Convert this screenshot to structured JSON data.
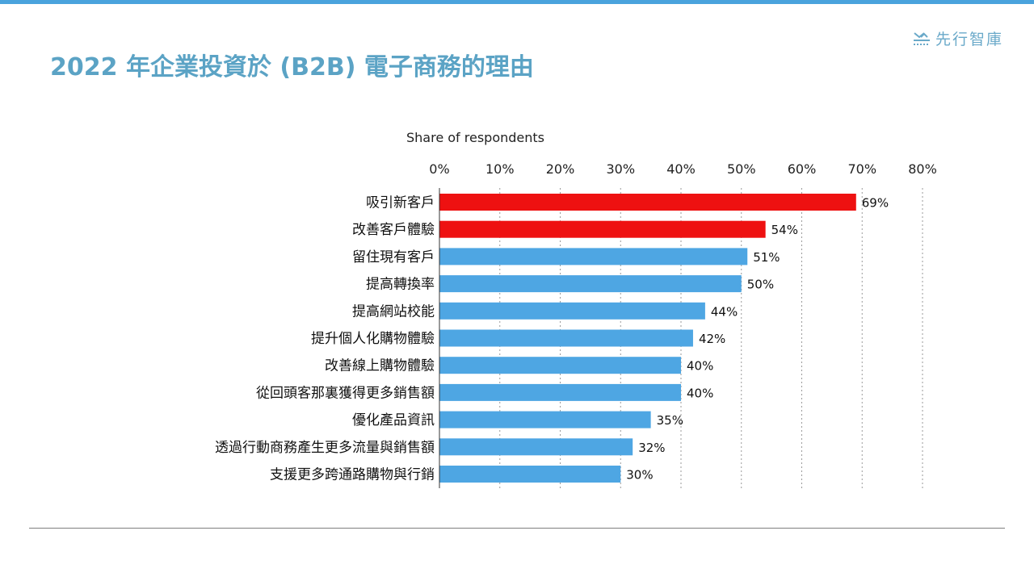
{
  "brand": {
    "logo_text": "先行智庫"
  },
  "page_title": "2022 年企業投資於 (B2B) 電子商務的理由",
  "chart_data": {
    "type": "bar",
    "orientation": "horizontal",
    "title": "2022 年企業投資於 (B2B) 電子商務的理由",
    "xlabel": "Share of respondents",
    "ylabel": "",
    "xlim": [
      0,
      80
    ],
    "ticks": [
      "0%",
      "10%",
      "20%",
      "30%",
      "40%",
      "50%",
      "60%",
      "70%",
      "80%"
    ],
    "tick_values": [
      0,
      10,
      20,
      30,
      40,
      50,
      60,
      70,
      80
    ],
    "grid": "vertical-dotted",
    "categories": [
      "吸引新客戶",
      "改善客戶體驗",
      "留住現有客戶",
      "提高轉換率",
      "提高網站校能",
      "提升個人化購物體驗",
      "改善線上購物體驗",
      "從回頭客那裏獲得更多銷售額",
      "優化產品資訊",
      "透過行動商務產生更多流量與銷售額",
      "支援更多跨通路購物與行銷"
    ],
    "values": [
      69,
      54,
      51,
      50,
      44,
      42,
      40,
      40,
      35,
      32,
      30
    ],
    "value_labels": [
      "69%",
      "54%",
      "51%",
      "50%",
      "44%",
      "42%",
      "40%",
      "40%",
      "35%",
      "32%",
      "30%"
    ],
    "highlight_color": "#ee1111",
    "default_color": "#4ea6e3",
    "highlighted": [
      true,
      true,
      false,
      false,
      false,
      false,
      false,
      false,
      false,
      false,
      false
    ]
  }
}
